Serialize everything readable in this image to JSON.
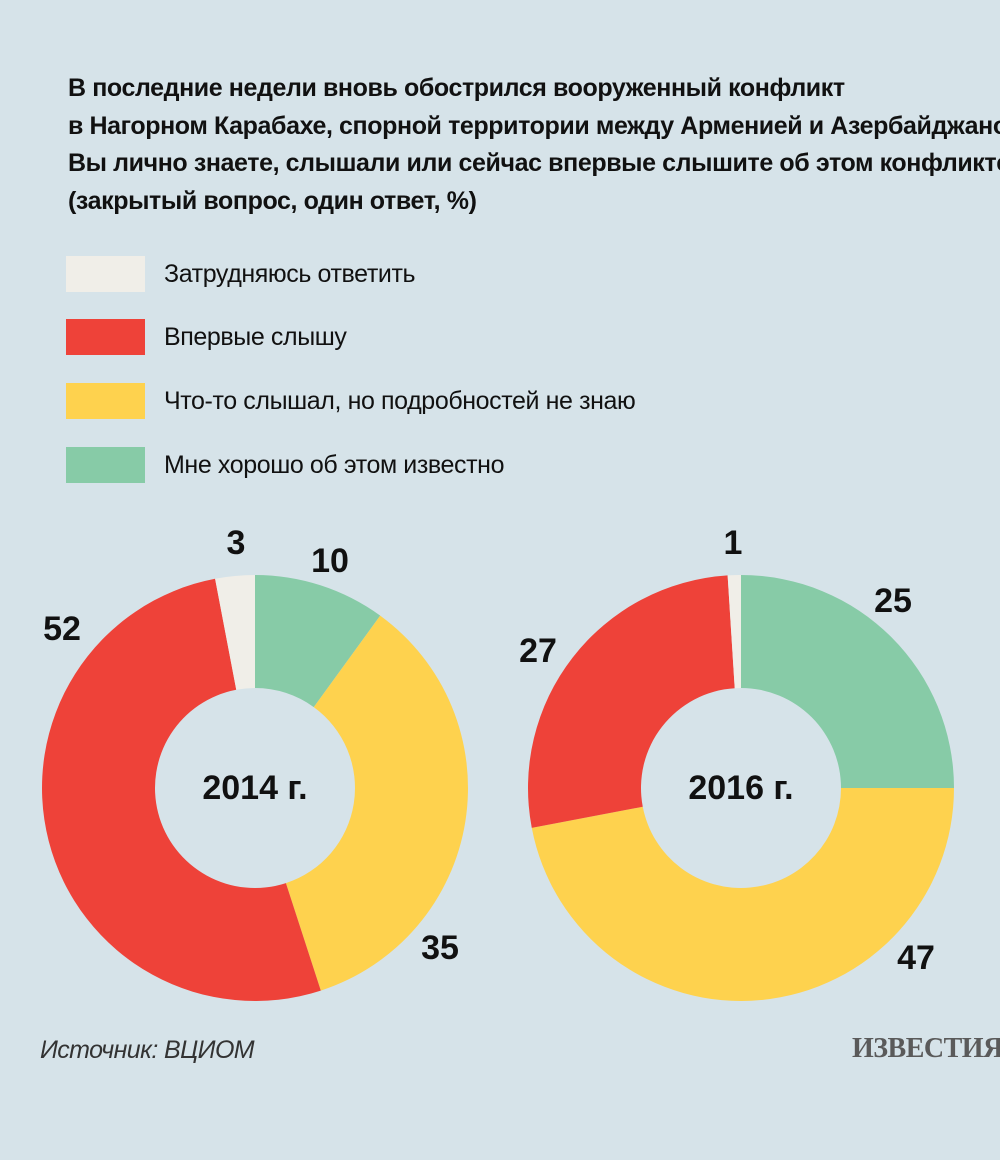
{
  "title_lines": [
    "В последние недели вновь обострился вооруженный конфликт",
    "в Нагорном Карабахе, спорной территории между Арменией и Азербайджаном.",
    "Вы лично знаете, слышали или сейчас впервые слышите об этом конфликте?",
    "(закрытый вопрос, один ответ, %)"
  ],
  "legend": [
    {
      "label": "Затрудняюсь ответить",
      "color": "#f0eee8"
    },
    {
      "label": "Впервые слышу",
      "color": "#ee4239"
    },
    {
      "label": "Что-то слышал, но подробностей не знаю",
      "color": "#fed24e"
    },
    {
      "label": "Мне хорошо об этом известно",
      "color": "#87cba7"
    }
  ],
  "chart_data": [
    {
      "type": "pie",
      "center_label": "2014 г.",
      "order": "clockwise from top",
      "slices": [
        {
          "category": "Мне хорошо об этом известно",
          "value": 10,
          "color": "#87cba7"
        },
        {
          "category": "Что-то слышал, но подробностей не знаю",
          "value": 35,
          "color": "#fed24e"
        },
        {
          "category": "Впервые слышу",
          "value": 52,
          "color": "#ee4239"
        },
        {
          "category": "Затрудняюсь ответить",
          "value": 3,
          "color": "#f0eee8"
        }
      ]
    },
    {
      "type": "pie",
      "center_label": "2016 г.",
      "order": "clockwise from top",
      "slices": [
        {
          "category": "Мне хорошо об этом известно",
          "value": 25,
          "color": "#87cba7"
        },
        {
          "category": "Что-то слышал, но подробностей не знаю",
          "value": 47,
          "color": "#fed24e"
        },
        {
          "category": "Впервые слышу",
          "value": 27,
          "color": "#ee4239"
        },
        {
          "category": "Затрудняюсь ответить",
          "value": 1,
          "color": "#f0eee8"
        }
      ]
    }
  ],
  "source": "Источник: ВЦИОМ",
  "logo_text": "ИЗВЕСТИЯ"
}
